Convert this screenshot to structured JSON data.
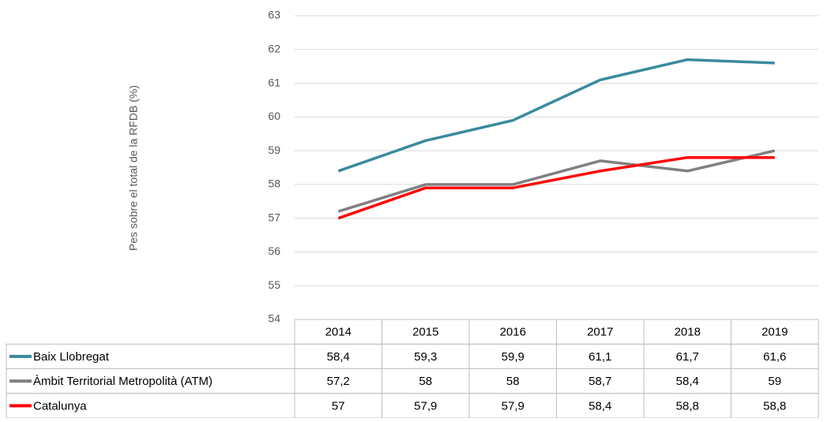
{
  "chart_data": {
    "type": "line",
    "y_label": "Pes sobre el total de la RFDB (%)",
    "categories": [
      "2014",
      "2015",
      "2016",
      "2017",
      "2018",
      "2019"
    ],
    "series": [
      {
        "name": "Baix Llobregat",
        "color": "#3a8a9e",
        "values": [
          58.4,
          59.3,
          59.9,
          61.1,
          61.7,
          61.6
        ],
        "value_labels": [
          "58,4",
          "59,3",
          "59,9",
          "61,1",
          "61,7",
          "61,6"
        ]
      },
      {
        "name": "Àmbit Territorial Metropolità (ATM)",
        "color": "#808080",
        "values": [
          57.2,
          58,
          58,
          58.7,
          58.4,
          59
        ],
        "value_labels": [
          "57,2",
          "58",
          "58",
          "58,7",
          "58,4",
          "59"
        ]
      },
      {
        "name": "Catalunya",
        "color": "#ff0000",
        "values": [
          57,
          57.9,
          57.9,
          58.4,
          58.8,
          58.8
        ],
        "value_labels": [
          "57",
          "57,9",
          "57,9",
          "58,4",
          "58,8",
          "58,8"
        ]
      }
    ],
    "ylim": [
      54,
      63
    ],
    "yticks": [
      54,
      55,
      56,
      57,
      58,
      59,
      60,
      61,
      62,
      63
    ],
    "grid": true
  }
}
